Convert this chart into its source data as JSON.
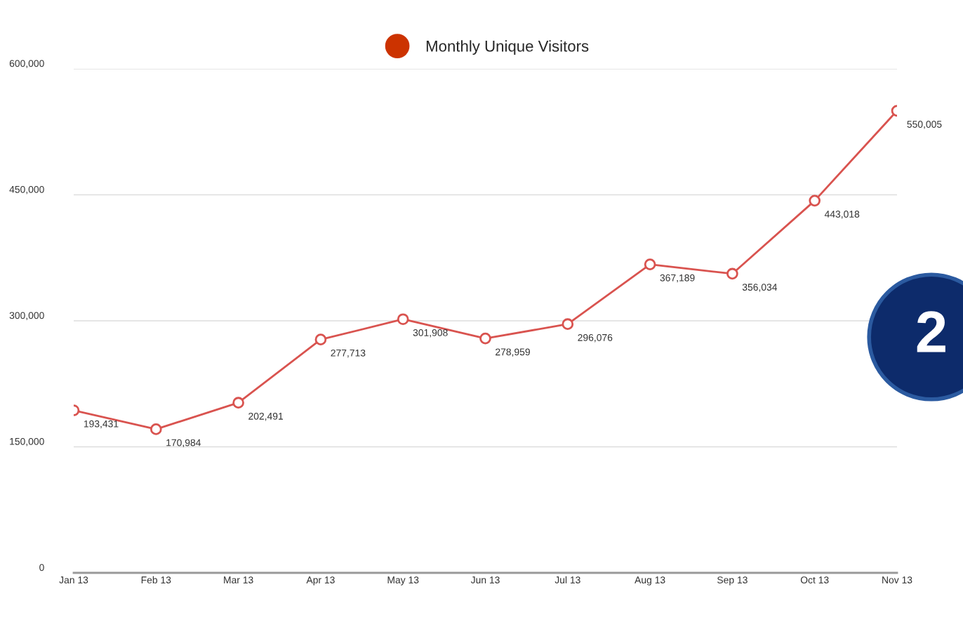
{
  "chart_data": {
    "type": "line",
    "categories": [
      "Jan 13",
      "Feb 13",
      "Mar 13",
      "Apr 13",
      "May 13",
      "Jun 13",
      "Jul 13",
      "Aug 13",
      "Sep 13",
      "Oct 13",
      "Nov 13"
    ],
    "series": [
      {
        "name": "Monthly Unique Visitors",
        "color": "#d9534f",
        "values": [
          193431,
          170984,
          202491,
          277713,
          301908,
          278959,
          296076,
          367189,
          356034,
          443018,
          550005
        ],
        "value_labels": [
          "193,431",
          "170,984",
          "202,491",
          "277,713",
          "301,908",
          "278,959",
          "296,076",
          "367,189",
          "356,034",
          "443,018",
          "550,005"
        ]
      }
    ],
    "ylim": [
      0,
      600000
    ],
    "yticks": [
      {
        "value": 0,
        "label": "0"
      },
      {
        "value": 150000,
        "label": "150,000"
      },
      {
        "value": 300000,
        "label": "300,000"
      },
      {
        "value": 450000,
        "label": "450,000"
      },
      {
        "value": 600000,
        "label": "600,000"
      }
    ],
    "grid": "y",
    "legend": "top",
    "marker": "circle",
    "line_style": "solid",
    "annotations": [
      "2"
    ]
  }
}
